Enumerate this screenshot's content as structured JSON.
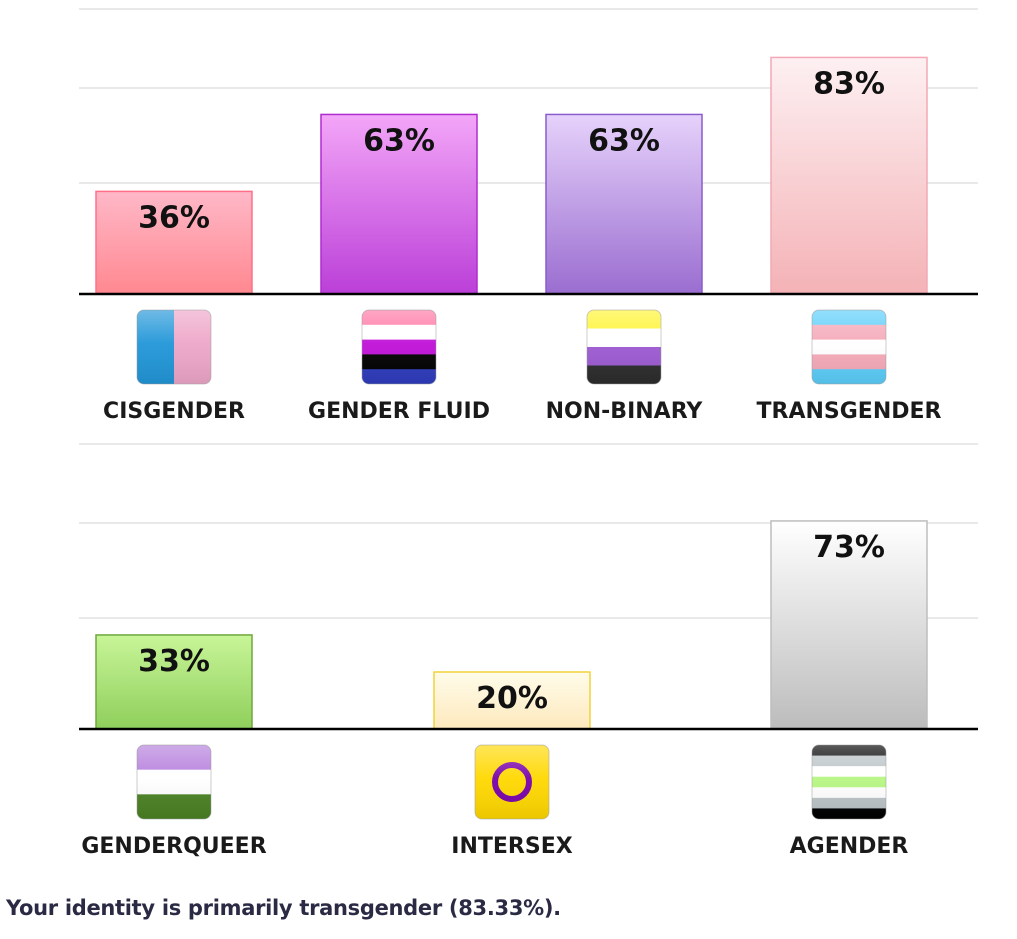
{
  "chart_data": [
    {
      "type": "bar",
      "categories": [
        "CISGENDER",
        "GENDER FLUID",
        "NON-BINARY",
        "TRANSGENDER"
      ],
      "values": [
        36,
        63,
        63,
        83
      ],
      "value_labels": [
        "36%",
        "63%",
        "63%",
        "83%"
      ],
      "ylim": [
        0,
        100
      ],
      "grid": true,
      "bar_gradients": [
        [
          "#ffb8c8",
          "#ff8890"
        ],
        [
          "#f3a6f8",
          "#bb3fd8"
        ],
        [
          "#e6d2fb",
          "#9a6dd0"
        ],
        [
          "#fdf0f2",
          "#f4b2b6"
        ]
      ],
      "bar_borders": [
        "#ff7088",
        "#b02ccf",
        "#8c5ccc",
        "#f3a8b3"
      ],
      "flags": [
        {
          "icon": "cisgender-flag-icon",
          "colors": [
            "#2196d8",
            "#eea6c8"
          ],
          "orientation": "vertical"
        },
        {
          "icon": "gender-fluid-flag-icon",
          "colors": [
            "#ff76a4",
            "#ffffff",
            "#c011d7",
            "#000000",
            "#2f3cbe"
          ],
          "orientation": "horizontal"
        },
        {
          "icon": "non-binary-flag-icon",
          "colors": [
            "#fff430",
            "#ffffff",
            "#9c59d1",
            "#2c2c2c"
          ],
          "orientation": "horizontal"
        },
        {
          "icon": "transgender-flag-icon",
          "colors": [
            "#5bcefa",
            "#f5a9b8",
            "#ffffff",
            "#f5a9b8",
            "#5bcefa"
          ],
          "orientation": "horizontal"
        }
      ]
    },
    {
      "type": "bar",
      "categories": [
        "GENDERQUEER",
        "INTERSEX",
        "AGENDER"
      ],
      "values": [
        33,
        20,
        73
      ],
      "value_labels": [
        "33%",
        "20%",
        "73%"
      ],
      "ylim": [
        0,
        100
      ],
      "grid": true,
      "bar_gradients": [
        [
          "#c8f598",
          "#8fcf5c"
        ],
        [
          "#fffcea",
          "#fde9bd"
        ],
        [
          "#ffffff",
          "#bcbcbc"
        ]
      ],
      "bar_borders": [
        "#6fa83e",
        "#f2d23a",
        "#bdbdbd"
      ],
      "flags": [
        {
          "icon": "genderqueer-flag-icon",
          "colors": [
            "#b57edc",
            "#ffffff",
            "#4a8123"
          ],
          "orientation": "horizontal"
        },
        {
          "icon": "intersex-flag-icon",
          "colors": [
            "#ffd800",
            "#7902aa"
          ],
          "orientation": "ring"
        },
        {
          "icon": "agender-flag-icon",
          "colors": [
            "#000000",
            "#bcc4c7",
            "#ffffff",
            "#b7f684",
            "#ffffff",
            "#bcc4c7",
            "#000000"
          ],
          "orientation": "horizontal"
        }
      ]
    }
  ],
  "result_text": "Your identity is primarily transgender (83.33%)."
}
